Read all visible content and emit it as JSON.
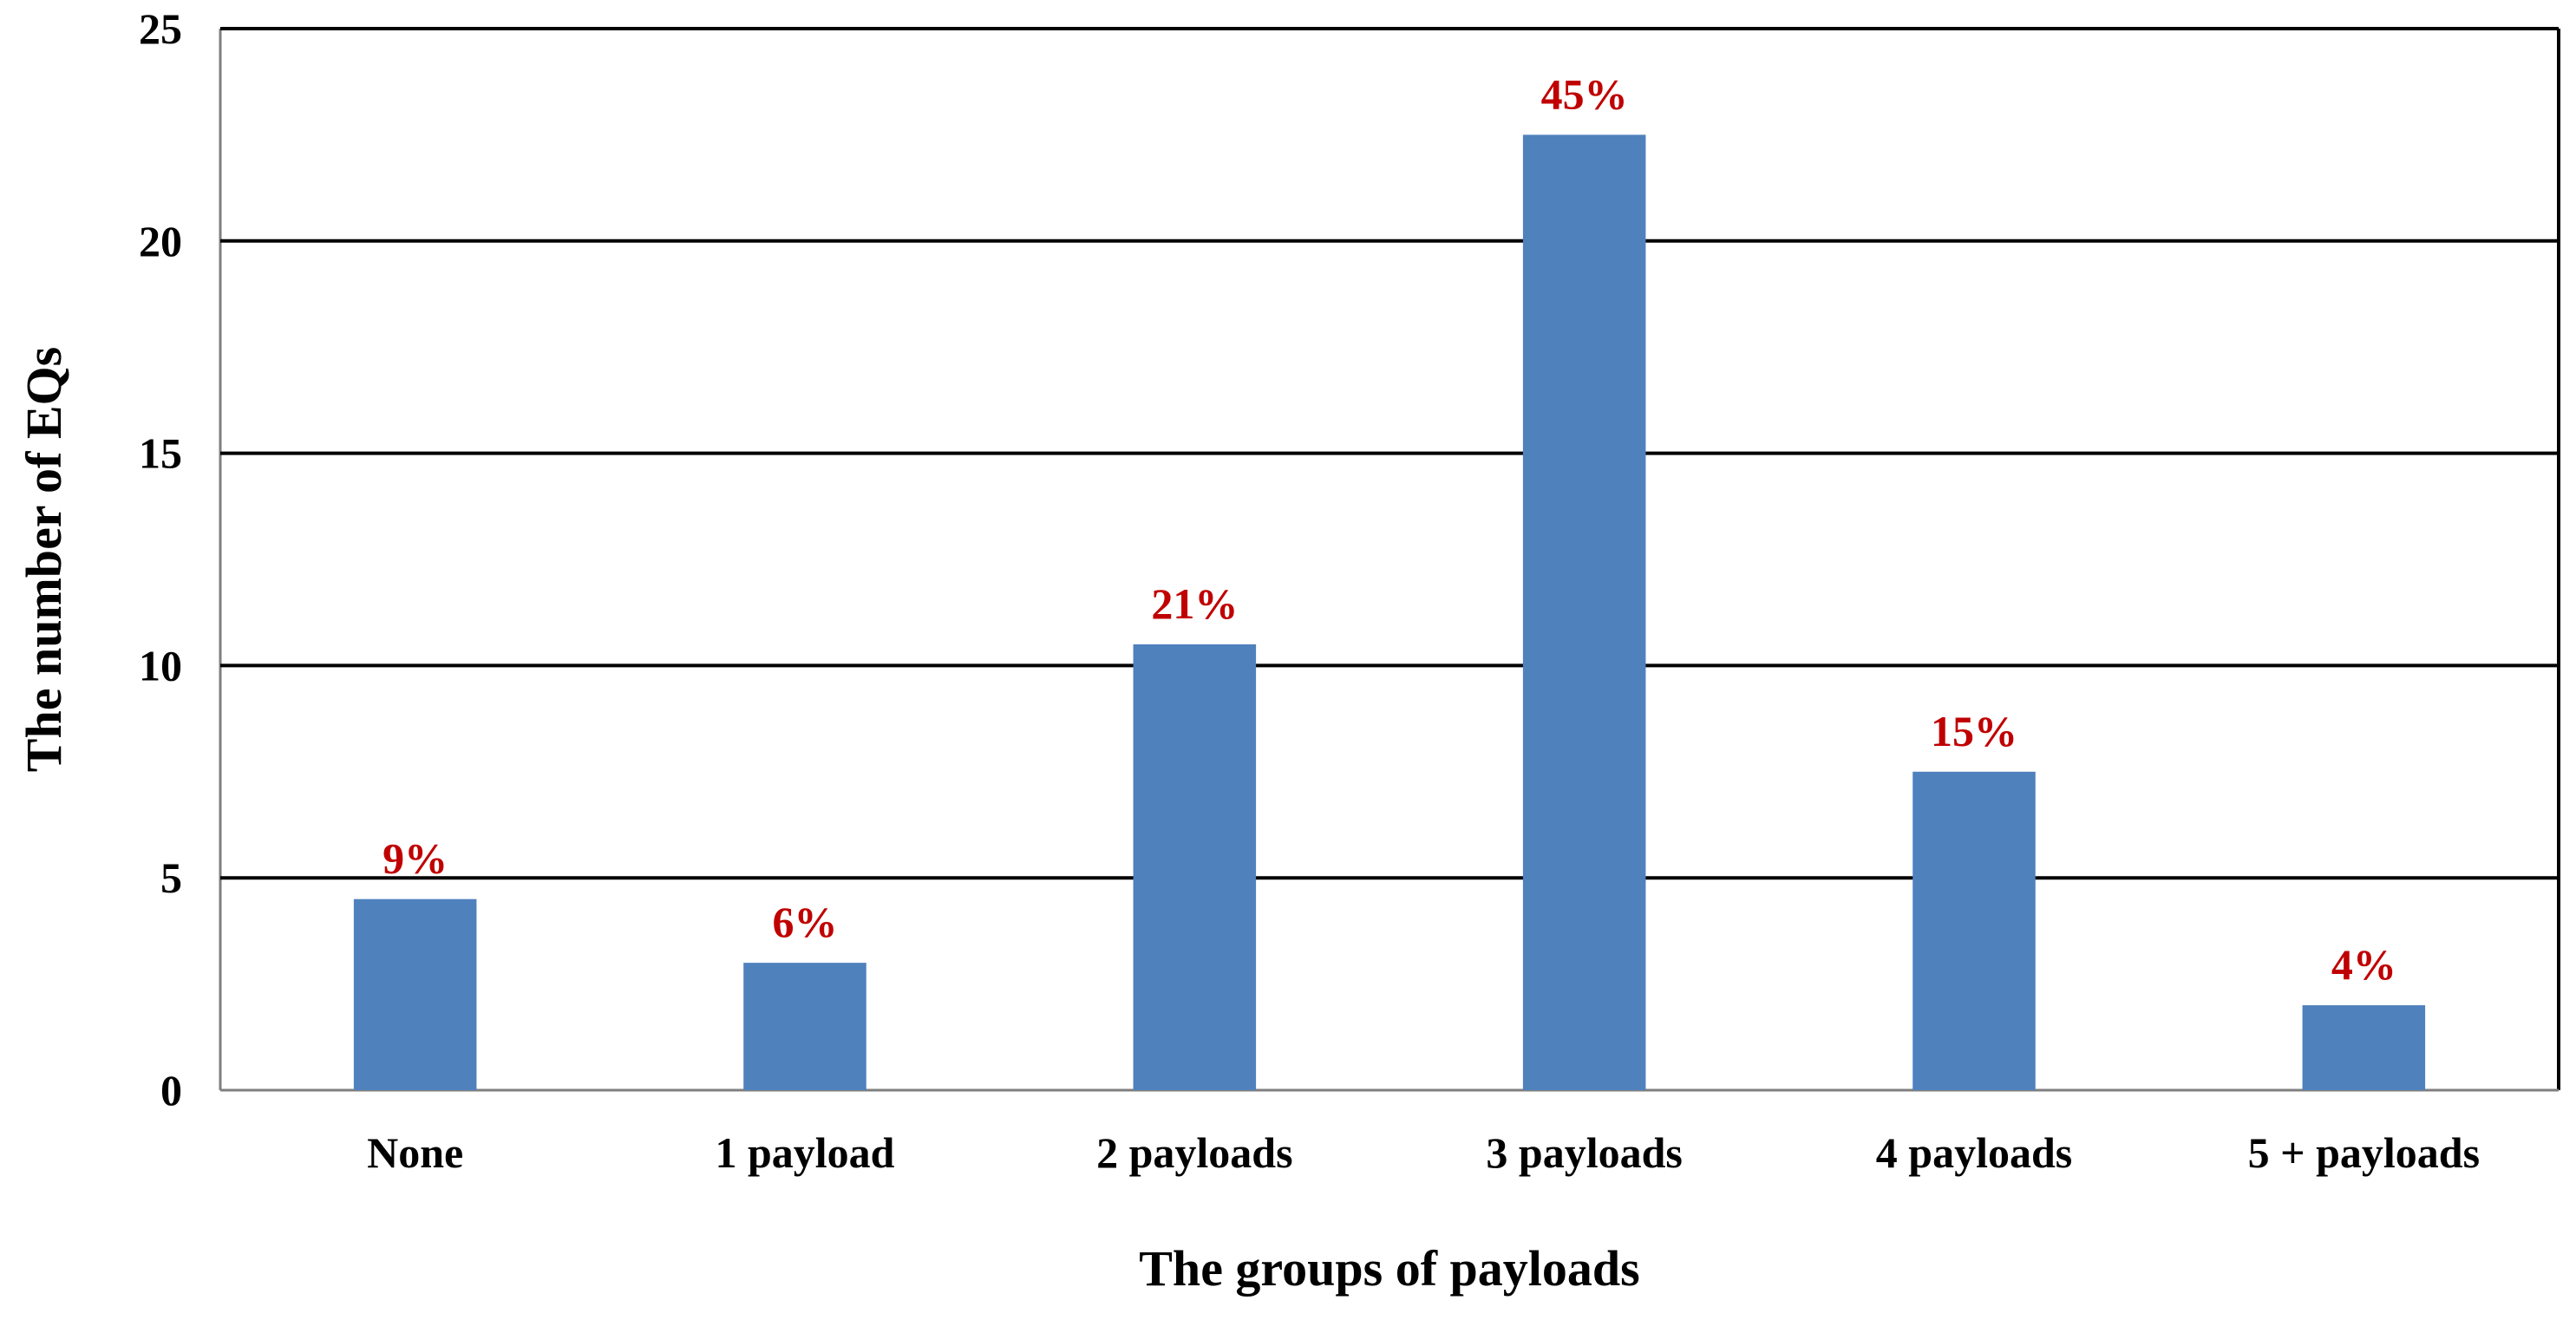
{
  "chart_data": {
    "type": "bar",
    "title": "",
    "xlabel": "The groups of payloads",
    "ylabel": "The number of EQs",
    "categories": [
      "None",
      "1 payload",
      "2 payloads",
      "3 payloads",
      "4 payloads",
      "5 + payloads"
    ],
    "values": [
      4.5,
      3,
      10.5,
      22.5,
      7.5,
      2
    ],
    "data_labels": [
      "9%",
      "6%",
      "21%",
      "45%",
      "15%",
      "4%"
    ],
    "ylim": [
      0,
      25
    ],
    "yticks": [
      "0",
      "5",
      "10",
      "15",
      "20",
      "25"
    ],
    "grid": true,
    "legend": "none",
    "colors": {
      "bar": "#4F81BD",
      "data_label": "#C00000",
      "grid": "#000000",
      "axis": "#7F7F7F",
      "text": "#000000"
    }
  }
}
